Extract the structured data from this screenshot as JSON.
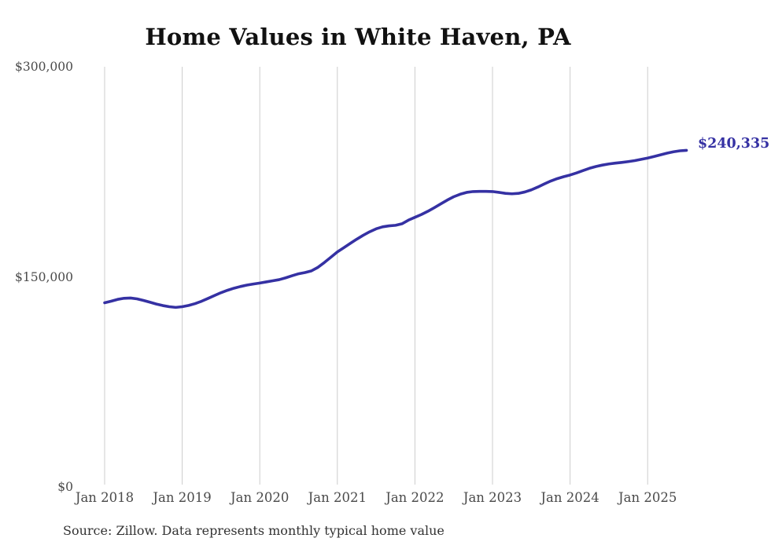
{
  "title": "Home Values in White Haven, PA",
  "source_note": "Source: Zillow. Data represents monthly typical home value",
  "final_value_label": "$240,335",
  "colors": {
    "line": "#3531a3",
    "grid": "#cccccc",
    "axis_text": "#4a4a4a",
    "title_text": "#111111",
    "source_text": "#333333",
    "background": "#ffffff"
  },
  "chart_data": {
    "type": "line",
    "title": "Home Values in White Haven, PA",
    "xlabel": "",
    "ylabel": "",
    "legend": "none",
    "grid": "vertical-only",
    "ylim": [
      0,
      300000
    ],
    "y_ticks": [
      {
        "label": "$0",
        "value": 0
      },
      {
        "label": "$150,000",
        "value": 150000
      },
      {
        "label": "$300,000",
        "value": 300000
      }
    ],
    "x_ticks": [
      "Jan 2018",
      "Jan 2019",
      "Jan 2020",
      "Jan 2021",
      "Jan 2022",
      "Jan 2023",
      "Jan 2024",
      "Jan 2025"
    ],
    "x_start_month": "2018-01",
    "x_end_month": "2025-07",
    "final_value": 240335,
    "series": [
      {
        "name": "Monthly typical home value",
        "monthly_values": [
          131500,
          132600,
          133900,
          134700,
          134900,
          134300,
          133200,
          131900,
          130600,
          129500,
          128700,
          128200,
          128700,
          129600,
          130900,
          132600,
          134600,
          136700,
          138700,
          140400,
          141900,
          143100,
          144100,
          144900,
          145600,
          146400,
          147200,
          148000,
          149300,
          150800,
          152200,
          153100,
          154300,
          156800,
          160300,
          164000,
          167800,
          170800,
          173900,
          176900,
          179700,
          182200,
          184300,
          185700,
          186400,
          186800,
          187900,
          190500,
          192500,
          194500,
          196800,
          199400,
          202100,
          204800,
          207200,
          209000,
          210300,
          210900,
          211000,
          211000,
          210900,
          210300,
          209600,
          209300,
          209600,
          210600,
          212100,
          214100,
          216300,
          218400,
          220100,
          221500,
          222700,
          224200,
          225900,
          227500,
          228800,
          229800,
          230600,
          231200,
          231700,
          232300,
          233000,
          233900,
          234800,
          235900,
          237100,
          238300,
          239300,
          240000,
          240335
        ]
      }
    ]
  }
}
